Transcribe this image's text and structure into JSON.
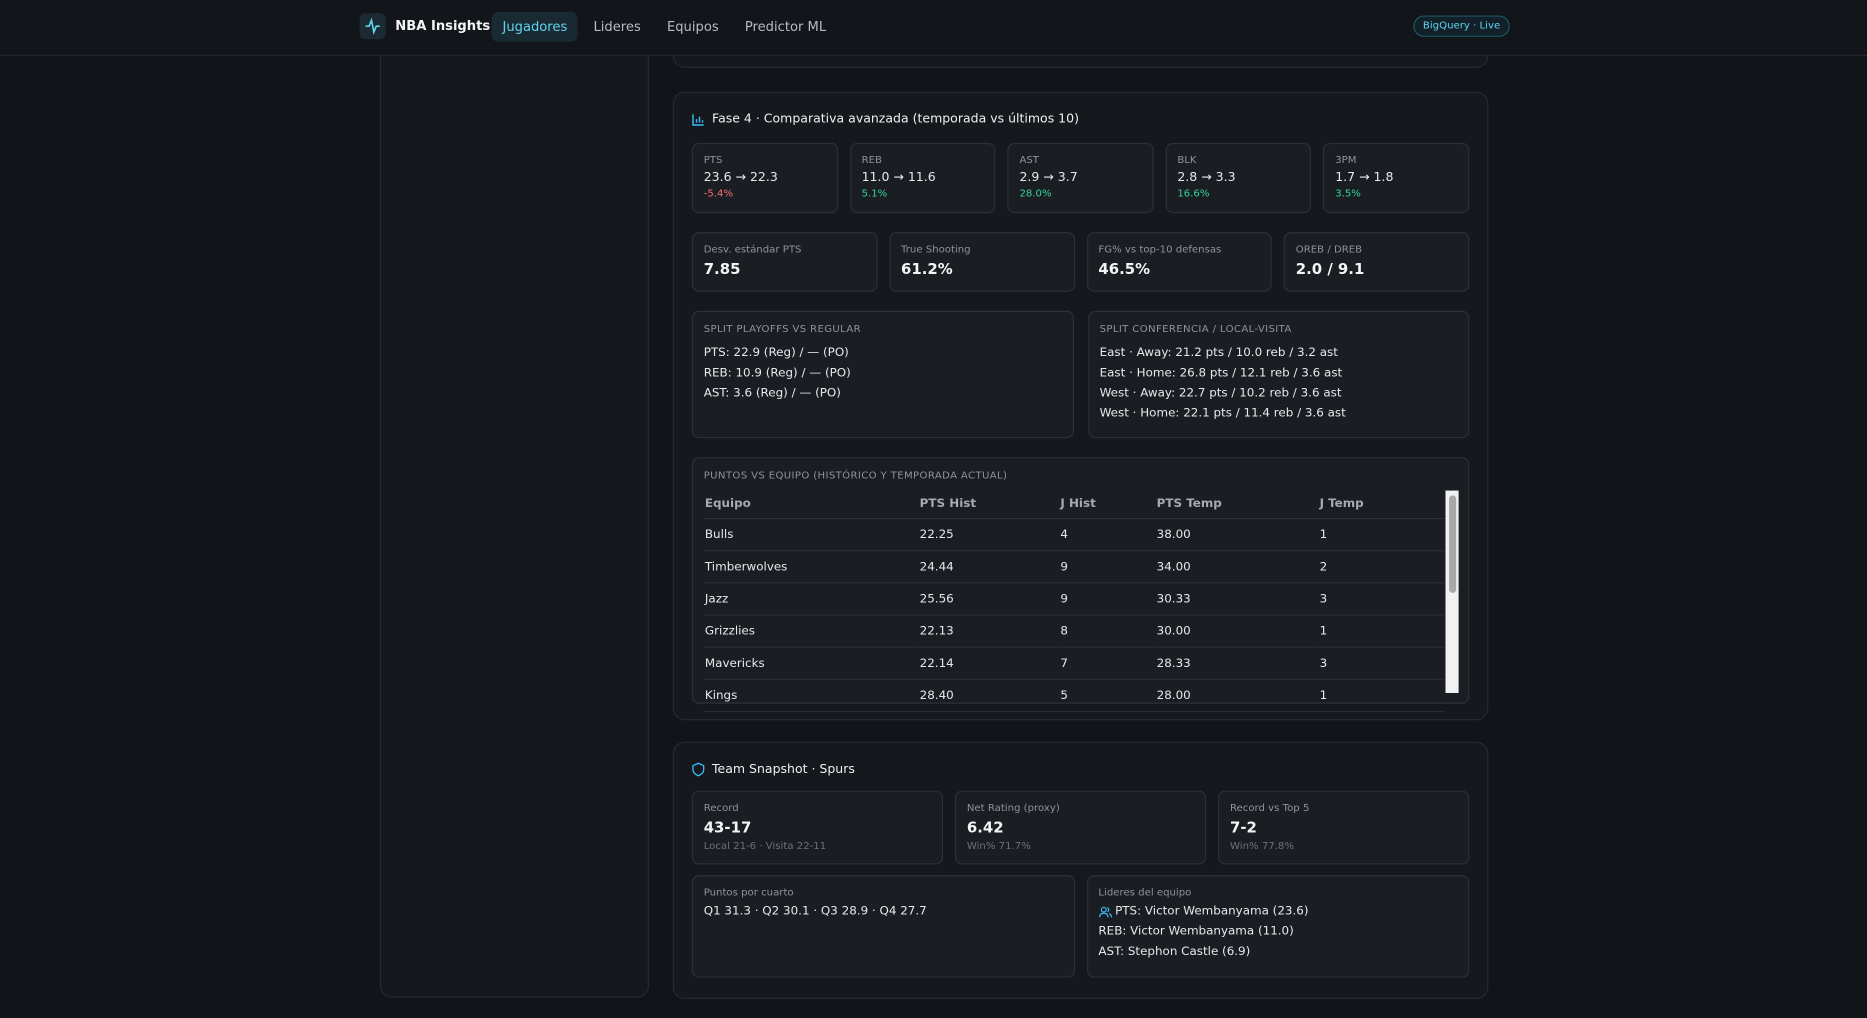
{
  "nav": {
    "brand": "NBA Insights",
    "links": [
      "Jugadores",
      "Lideres",
      "Equipos",
      "Predictor ML"
    ],
    "badge": "BigQuery · Live"
  },
  "phase4": {
    "title": "Fase 4 · Comparativa avanzada (temporada vs últimos 10)",
    "deltas": [
      {
        "label": "PTS",
        "value": "23.6 → 22.3",
        "change": "-5.4%"
      },
      {
        "label": "REB",
        "value": "11.0 → 11.6",
        "change": "5.1%"
      },
      {
        "label": "AST",
        "value": "2.9 → 3.7",
        "change": "28.0%"
      },
      {
        "label": "BLK",
        "value": "2.8 → 3.3",
        "change": "16.6%"
      },
      {
        "label": "3PM",
        "value": "1.7 → 1.8",
        "change": "3.5%"
      }
    ],
    "metrics": [
      {
        "label": "Desv. estándar PTS",
        "value": "7.85"
      },
      {
        "label": "True Shooting",
        "value": "61.2%"
      },
      {
        "label": "FG% vs top-10 defensas",
        "value": "46.5%"
      },
      {
        "label": "OREB / DREB",
        "value": "2.0 / 9.1"
      }
    ],
    "splits": [
      {
        "title": "SPLIT PLAYOFFS VS REGULAR",
        "lines": [
          "PTS: 22.9 (Reg) / — (PO)",
          "REB: 10.9 (Reg) / — (PO)",
          "AST: 3.6 (Reg) / — (PO)"
        ]
      },
      {
        "title": "SPLIT CONFERENCIA / LOCAL-VISITA",
        "lines": [
          "East · Away: 21.2 pts / 10.0 reb / 3.2 ast",
          "East · Home: 26.8 pts / 12.1 reb / 3.6 ast",
          "West · Away: 22.7 pts / 10.2 reb / 3.6 ast",
          "West · Home: 22.1 pts / 11.4 reb / 3.6 ast"
        ]
      }
    ],
    "table": {
      "title": "PUNTOS VS EQUIPO (HISTÓRICO Y TEMPORADA ACTUAL)",
      "headers": [
        "Equipo",
        "PTS Hist",
        "J Hist",
        "PTS Temp",
        "J Temp"
      ],
      "rows": [
        [
          "Bulls",
          "22.25",
          "4",
          "38.00",
          "1"
        ],
        [
          "Timberwolves",
          "24.44",
          "9",
          "34.00",
          "2"
        ],
        [
          "Jazz",
          "25.56",
          "9",
          "30.33",
          "3"
        ],
        [
          "Grizzlies",
          "22.13",
          "8",
          "30.00",
          "1"
        ],
        [
          "Mavericks",
          "22.14",
          "7",
          "28.33",
          "3"
        ],
        [
          "Kings",
          "28.40",
          "5",
          "28.00",
          "1"
        ]
      ]
    }
  },
  "team": {
    "title": "Team Snapshot · Spurs",
    "cards": [
      {
        "label": "Record",
        "value": "43-17",
        "sub": "Local 21-6 · Visita 22-11"
      },
      {
        "label": "Net Rating (proxy)",
        "value": "6.42",
        "sub": "Win% 71.7%"
      },
      {
        "label": "Record vs Top 5",
        "value": "7-2",
        "sub": "Win% 77.8%"
      }
    ],
    "quarters": {
      "label": "Puntos por cuarto",
      "text": "Q1 31.3 · Q2 30.1 · Q3 28.9 · Q4 27.7"
    },
    "leaders": {
      "label": "Lideres del equipo",
      "lines": [
        "PTS: Victor Wembanyama (23.6)",
        "REB: Victor Wembanyama (11.0)",
        "AST: Stephon Castle (6.9)"
      ]
    }
  }
}
